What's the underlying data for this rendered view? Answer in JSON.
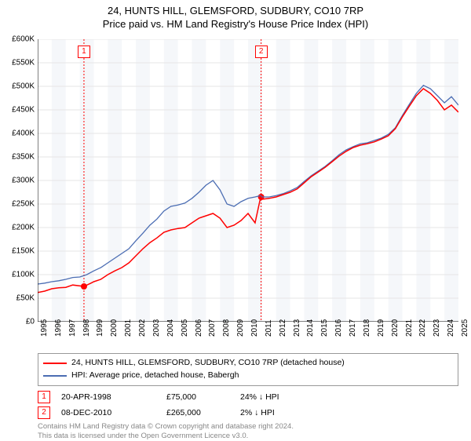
{
  "title": {
    "line1": "24, HUNTS HILL, GLEMSFORD, SUDBURY, CO10 7RP",
    "line2": "Price paid vs. HM Land Registry's House Price Index (HPI)"
  },
  "chart": {
    "type": "line",
    "background_color": "#ffffff",
    "alt_band_color": "#f5f7fa",
    "grid_color": "#e6e6e6",
    "axis_color": "#000000",
    "xlim": [
      1995,
      2025
    ],
    "ylim": [
      0,
      600000
    ],
    "ytick_step": 50000,
    "yticks_labels": [
      "£0",
      "£50K",
      "£100K",
      "£150K",
      "£200K",
      "£250K",
      "£300K",
      "£350K",
      "£400K",
      "£450K",
      "£500K",
      "£550K",
      "£600K"
    ],
    "xticks": [
      1995,
      1996,
      1997,
      1998,
      1999,
      2000,
      2001,
      2002,
      2003,
      2004,
      2005,
      2006,
      2007,
      2008,
      2009,
      2010,
      2011,
      2012,
      2013,
      2014,
      2015,
      2016,
      2017,
      2018,
      2019,
      2020,
      2021,
      2022,
      2023,
      2024,
      2025
    ],
    "series": [
      {
        "name": "property",
        "label": "24, HUNTS HILL, GLEMSFORD, SUDBURY, CO10 7RP (detached house)",
        "color": "#ff0000",
        "line_width": 1.5,
        "points": [
          [
            1995,
            62000
          ],
          [
            1995.5,
            65000
          ],
          [
            1996,
            70000
          ],
          [
            1996.5,
            72000
          ],
          [
            1997,
            73000
          ],
          [
            1997.5,
            78000
          ],
          [
            1998.3,
            75000
          ],
          [
            1998.8,
            82000
          ],
          [
            1999,
            85000
          ],
          [
            1999.5,
            90000
          ],
          [
            2000,
            100000
          ],
          [
            2000.5,
            108000
          ],
          [
            2001,
            115000
          ],
          [
            2001.5,
            125000
          ],
          [
            2002,
            140000
          ],
          [
            2002.5,
            155000
          ],
          [
            2003,
            168000
          ],
          [
            2003.5,
            178000
          ],
          [
            2004,
            190000
          ],
          [
            2004.5,
            195000
          ],
          [
            2005,
            198000
          ],
          [
            2005.5,
            200000
          ],
          [
            2006,
            210000
          ],
          [
            2006.5,
            220000
          ],
          [
            2007,
            225000
          ],
          [
            2007.5,
            230000
          ],
          [
            2008,
            220000
          ],
          [
            2008.5,
            200000
          ],
          [
            2009,
            205000
          ],
          [
            2009.5,
            215000
          ],
          [
            2010,
            230000
          ],
          [
            2010.5,
            210000
          ],
          [
            2010.9,
            265000
          ],
          [
            2011,
            260000
          ],
          [
            2011.5,
            262000
          ],
          [
            2012,
            265000
          ],
          [
            2012.5,
            270000
          ],
          [
            2013,
            275000
          ],
          [
            2013.5,
            282000
          ],
          [
            2014,
            295000
          ],
          [
            2014.5,
            308000
          ],
          [
            2015,
            318000
          ],
          [
            2015.5,
            328000
          ],
          [
            2016,
            340000
          ],
          [
            2016.5,
            352000
          ],
          [
            2017,
            362000
          ],
          [
            2017.5,
            370000
          ],
          [
            2018,
            375000
          ],
          [
            2018.5,
            378000
          ],
          [
            2019,
            382000
          ],
          [
            2019.5,
            388000
          ],
          [
            2020,
            395000
          ],
          [
            2020.5,
            410000
          ],
          [
            2021,
            435000
          ],
          [
            2021.5,
            458000
          ],
          [
            2022,
            480000
          ],
          [
            2022.5,
            495000
          ],
          [
            2023,
            485000
          ],
          [
            2023.5,
            470000
          ],
          [
            2024,
            450000
          ],
          [
            2024.5,
            460000
          ],
          [
            2025,
            445000
          ]
        ]
      },
      {
        "name": "hpi",
        "label": "HPI: Average price, detached house, Babergh",
        "color": "#4b6db3",
        "line_width": 1.3,
        "points": [
          [
            1995,
            80000
          ],
          [
            1995.5,
            82000
          ],
          [
            1996,
            85000
          ],
          [
            1996.5,
            87000
          ],
          [
            1997,
            90000
          ],
          [
            1997.5,
            94000
          ],
          [
            1998,
            95000
          ],
          [
            1998.5,
            100000
          ],
          [
            1999,
            108000
          ],
          [
            1999.5,
            115000
          ],
          [
            2000,
            125000
          ],
          [
            2000.5,
            135000
          ],
          [
            2001,
            145000
          ],
          [
            2001.5,
            155000
          ],
          [
            2002,
            172000
          ],
          [
            2002.5,
            188000
          ],
          [
            2003,
            205000
          ],
          [
            2003.5,
            218000
          ],
          [
            2004,
            235000
          ],
          [
            2004.5,
            245000
          ],
          [
            2005,
            248000
          ],
          [
            2005.5,
            252000
          ],
          [
            2006,
            262000
          ],
          [
            2006.5,
            275000
          ],
          [
            2007,
            290000
          ],
          [
            2007.5,
            300000
          ],
          [
            2008,
            280000
          ],
          [
            2008.5,
            250000
          ],
          [
            2009,
            245000
          ],
          [
            2009.5,
            255000
          ],
          [
            2010,
            262000
          ],
          [
            2010.5,
            265000
          ],
          [
            2010.9,
            268000
          ],
          [
            2011,
            265000
          ],
          [
            2011.5,
            265000
          ],
          [
            2012,
            268000
          ],
          [
            2012.5,
            272000
          ],
          [
            2013,
            278000
          ],
          [
            2013.5,
            285000
          ],
          [
            2014,
            298000
          ],
          [
            2014.5,
            310000
          ],
          [
            2015,
            320000
          ],
          [
            2015.5,
            330000
          ],
          [
            2016,
            342000
          ],
          [
            2016.5,
            355000
          ],
          [
            2017,
            365000
          ],
          [
            2017.5,
            372000
          ],
          [
            2018,
            378000
          ],
          [
            2018.5,
            380000
          ],
          [
            2019,
            385000
          ],
          [
            2019.5,
            390000
          ],
          [
            2020,
            398000
          ],
          [
            2020.5,
            412000
          ],
          [
            2021,
            438000
          ],
          [
            2021.5,
            462000
          ],
          [
            2022,
            485000
          ],
          [
            2022.5,
            502000
          ],
          [
            2023,
            495000
          ],
          [
            2023.5,
            480000
          ],
          [
            2024,
            465000
          ],
          [
            2024.5,
            478000
          ],
          [
            2025,
            460000
          ]
        ]
      }
    ],
    "events": [
      {
        "id": "1",
        "year": 1998.3,
        "value": 75000,
        "date": "20-APR-1998",
        "price": "£75,000",
        "delta": "24% ↓ HPI"
      },
      {
        "id": "2",
        "year": 2010.93,
        "value": 265000,
        "date": "08-DEC-2010",
        "price": "£265,000",
        "delta": "2% ↓ HPI"
      }
    ],
    "event_marker": {
      "border_color": "#ff0000",
      "dash_color": "#ff0000",
      "dot_color": "#ff0000",
      "dot_radius": 4
    }
  },
  "legend_title_fontsize": 10.5,
  "footer": {
    "line1": "Contains HM Land Registry data © Crown copyright and database right 2024.",
    "line2": "This data is licensed under the Open Government Licence v3.0."
  }
}
